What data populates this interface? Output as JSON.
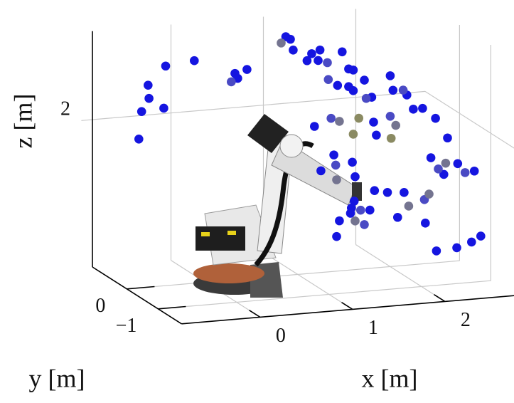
{
  "chart_data": {
    "type": "scatter3d",
    "xlabel": "x [m]",
    "ylabel": "y [m]",
    "zlabel": "z [m]",
    "xlim": [
      -0.85,
      2.75
    ],
    "ylim": [
      -1.75,
      1.1
    ],
    "zlim": [
      0,
      3.2
    ],
    "xticks": [
      0,
      1,
      2
    ],
    "yticks": [
      {
        "value": -1,
        "label": "−1"
      },
      0
    ],
    "zticks": [
      2
    ],
    "grid": true,
    "series": [
      {
        "color": "#1515e0",
        "x": [
          -0.43,
          -0.12,
          -0.62,
          -0.61,
          -0.69,
          -0.45,
          -0.72,
          0.32,
          0.45,
          0.35,
          0.87,
          0.92,
          0.95,
          1.15,
          1.24,
          1.1,
          1.48,
          1.55,
          1.6,
          1.72,
          1.43,
          1.55,
          1.6,
          2.0,
          2.03,
          2.18,
          1.8,
          1.22,
          1.82,
          2.35,
          2.25,
          2.49,
          1.85,
          1.18,
          2.62,
          2.44,
          2.73,
          2.91,
          2.58,
          1.39,
          1.59,
          1.25,
          1.62,
          1.83,
          1.97,
          2.15,
          2.08,
          2.38,
          1.61,
          1.58,
          1.78,
          1.57,
          1.45,
          1.42,
          2.5,
          2.72,
          2.88,
          2.98
        ],
        "y": [
          0,
          0,
          0,
          0,
          0,
          0,
          0,
          0,
          0,
          0,
          0,
          0,
          0,
          0,
          0,
          0,
          0,
          0,
          0,
          0,
          0,
          0,
          0,
          0,
          0,
          0,
          0,
          0,
          0,
          0,
          0,
          0,
          0,
          0,
          0,
          0,
          0,
          0,
          0,
          0,
          0,
          0,
          0,
          0,
          0,
          0,
          0,
          0,
          0,
          0,
          0,
          0,
          0,
          0,
          0,
          0,
          0,
          0
        ],
        "z": [
          2.98,
          3.02,
          2.74,
          2.56,
          2.39,
          2.41,
          2.02,
          2.8,
          2.84,
          2.73,
          3.24,
          3.2,
          3.05,
          2.98,
          3.02,
          2.89,
          2.97,
          2.73,
          2.71,
          2.56,
          2.52,
          2.49,
          2.43,
          2.59,
          2.39,
          2.31,
          2.32,
          2.88,
          1.98,
          2.11,
          2.11,
          1.96,
          1.8,
          1.99,
          1.68,
          1.43,
          1.32,
          1.2,
          1.19,
          1.58,
          1.46,
          1.38,
          1.26,
          1.05,
          1.01,
          0.99,
          0.66,
          0.55,
          0.93,
          0.84,
          0.79,
          0.77,
          0.68,
          0.47,
          0.16,
          0.18,
          0.24,
          0.31
        ]
      },
      {
        "color": "#4a4ac4",
        "x": [
          0.28,
          1.32,
          2.14,
          1.74,
          1.33,
          1.36,
          2.0,
          2.81,
          2.52,
          1.41,
          2.37,
          1.68,
          1.72
        ],
        "y": [
          0,
          0,
          0,
          0,
          0,
          0,
          0,
          0,
          0,
          0,
          0,
          0,
          0
        ],
        "z": [
          2.69,
          2.84,
          2.38,
          2.31,
          2.61,
          2.08,
          2.04,
          1.19,
          1.27,
          1.44,
          0.87,
          0.8,
          0.6
        ]
      },
      {
        "color": "#747490",
        "x": [
          0.82,
          1.45,
          2.06,
          2.6,
          1.42,
          2.42,
          2.2,
          1.62
        ],
        "y": [
          0,
          0,
          0,
          0,
          0,
          0,
          0,
          0
        ],
        "z": [
          3.16,
          2.03,
          1.91,
          1.34,
          1.24,
          0.94,
          0.8,
          0.66
        ]
      },
      {
        "color": "#8a8a62",
        "x": [
          1.66,
          1.6,
          2.01
        ],
        "y": [
          0,
          0,
          0
        ],
        "z": [
          2.05,
          1.84,
          1.74
        ]
      }
    ]
  }
}
